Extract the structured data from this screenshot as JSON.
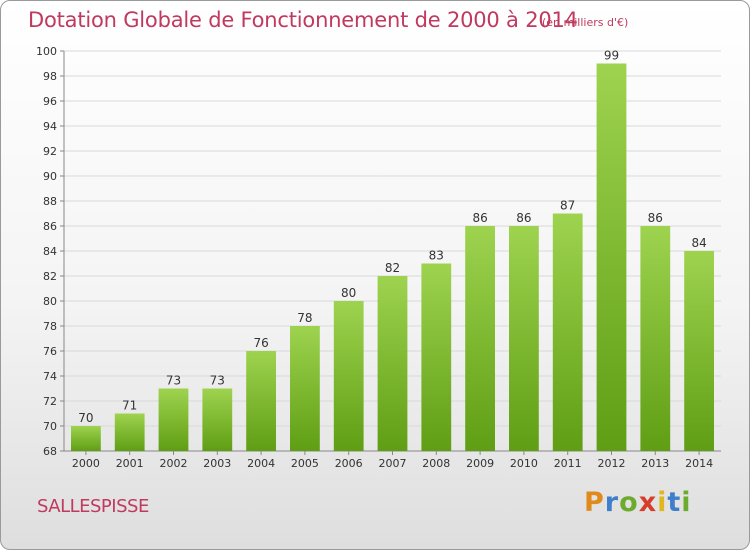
{
  "title": "Dotation Globale de Fonctionnement de 2000 à 2014",
  "subtitle": "(en milliers d'€)",
  "commune": "SALLESPISSE",
  "logo": {
    "letters": [
      "P",
      "r",
      "o",
      "x",
      "i",
      "t",
      "i"
    ]
  },
  "colors": {
    "title": "#c0395f",
    "bar_top": "#9ed34f",
    "bar_bottom": "#5f9e14",
    "grid": "#d9d9d9",
    "logo_letters": [
      "#e08a1e",
      "#3f7ecb",
      "#6cab2e",
      "#d63d2b",
      "#e0b81e",
      "#3f7ecb",
      "#6cab2e"
    ]
  },
  "chart_data": {
    "type": "bar",
    "categories": [
      "2000",
      "2001",
      "2002",
      "2003",
      "2004",
      "2005",
      "2006",
      "2007",
      "2008",
      "2009",
      "2010",
      "2011",
      "2012",
      "2013",
      "2014"
    ],
    "values": [
      70,
      71,
      73,
      73,
      76,
      78,
      80,
      82,
      83,
      86,
      86,
      87,
      99,
      86,
      84
    ],
    "ylim": [
      68,
      100
    ],
    "yticks": [
      68,
      70,
      72,
      74,
      76,
      78,
      80,
      82,
      84,
      86,
      88,
      90,
      92,
      94,
      96,
      98,
      100
    ],
    "grid": true,
    "xlabel": "",
    "ylabel": ""
  }
}
